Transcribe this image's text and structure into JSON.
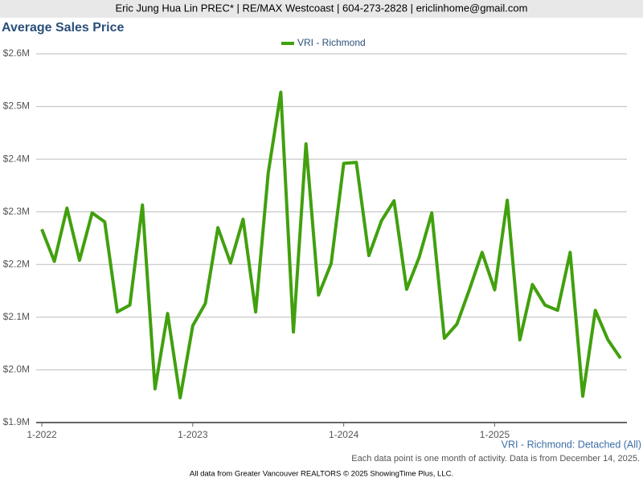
{
  "header": {
    "text": "Eric Jung Hua Lin PREC* | RE/MAX Westcoast | 604-273-2828 | ericlinhome@gmail.com"
  },
  "chart_data": {
    "type": "line",
    "title": "Average Sales Price",
    "categories": [
      "1-2022",
      null,
      null,
      null,
      null,
      null,
      null,
      null,
      null,
      null,
      null,
      null,
      "1-2023",
      null,
      null,
      null,
      null,
      null,
      null,
      null,
      null,
      null,
      null,
      null,
      "1-2024",
      null,
      null,
      null,
      null,
      null,
      null,
      null,
      null,
      null,
      null,
      null,
      "1-2025",
      null,
      null,
      null,
      null,
      null,
      null,
      null,
      null,
      null,
      null
    ],
    "series": [
      {
        "name": "VRI - Richmond",
        "color": "#41a00e",
        "values": [
          2267000,
          2206000,
          2307000,
          2208000,
          2298000,
          2281000,
          2110000,
          2123000,
          2313000,
          1964000,
          2107000,
          1947000,
          2084000,
          2126000,
          2270000,
          2203000,
          2286000,
          2110000,
          2374000,
          2527000,
          2072000,
          2429000,
          2142000,
          2202000,
          2392000,
          2394000,
          2217000,
          2283000,
          2321000,
          2153000,
          2214000,
          2298000,
          2060000,
          2087000,
          2153000,
          2223000,
          2152000,
          2322000,
          2057000,
          2162000,
          2123000,
          2113000,
          2223000,
          1950000,
          2113000,
          2057000,
          2022000
        ]
      }
    ],
    "ylim": [
      1900000,
      2600000
    ],
    "yticks": [
      {
        "value": 1900000,
        "label": "$1.9M"
      },
      {
        "value": 2000000,
        "label": "$2.0M"
      },
      {
        "value": 2100000,
        "label": "$2.1M"
      },
      {
        "value": 2200000,
        "label": "$2.2M"
      },
      {
        "value": 2300000,
        "label": "$2.3M"
      },
      {
        "value": 2400000,
        "label": "$2.4M"
      },
      {
        "value": 2500000,
        "label": "$2.5M"
      },
      {
        "value": 2600000,
        "label": "$2.6M"
      }
    ],
    "grid": true,
    "legend": "top",
    "caption": "VRI - Richmond: Detached (All)"
  },
  "footer": {
    "note": "Each data point is one month of activity. Data is from December 14, 2025.",
    "source": "All data from Greater Vancouver REALTORS © 2025 ShowingTime Plus, LLC."
  }
}
